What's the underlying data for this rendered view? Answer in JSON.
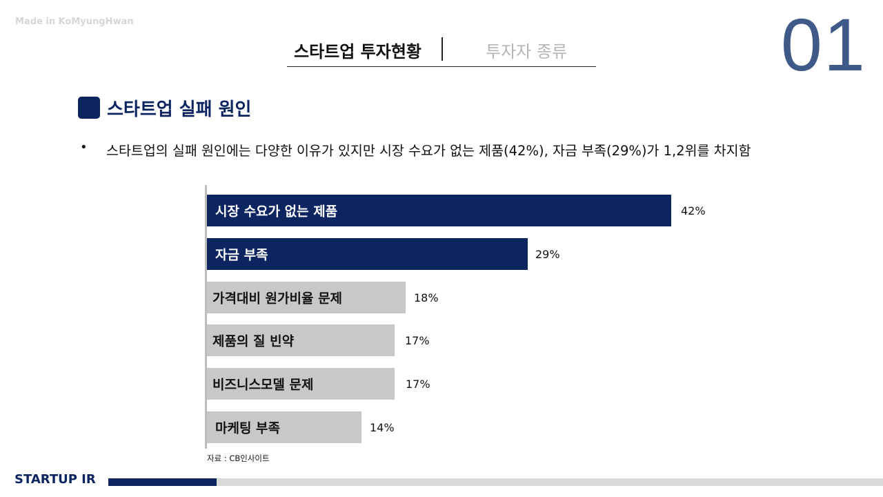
{
  "watermark": "Made in KoMyungHwan",
  "tabs": [
    {
      "label": "스타트업 투자현황",
      "active": true
    },
    {
      "label": "투자자 종류",
      "active": false
    }
  ],
  "page_number": "01",
  "section": {
    "title": "스타트업 실패 원인"
  },
  "bullet": {
    "marker": "•",
    "text": "스타트업의 실패 원인에는 다양한 이유가 있지만 시장 수요가 없는 제품(42%), 자금 부족(29%)가 1,2위를 차지함"
  },
  "chart_data": {
    "type": "bar",
    "orientation": "horizontal",
    "categories": [
      "시장 수요가 없는 제품",
      "자금 부족",
      "가격대비 원가비율 문제",
      "제품의 질 빈약",
      "비즈니스모델 문제",
      "마케팅 부족"
    ],
    "values": [
      42,
      29,
      18,
      17,
      17,
      14
    ],
    "value_labels": [
      "42%",
      "29%",
      "18%",
      "17%",
      "17%",
      "14%"
    ],
    "unit": "%",
    "xlim": [
      0,
      42
    ],
    "highlight_colors": [
      "#0c2460",
      "#0c2460",
      "#c8c8c8",
      "#c8c8c8",
      "#c8c8c8",
      "#c8c8c8"
    ],
    "label_colors": [
      "#ffffff",
      "#ffffff",
      "#111111",
      "#111111",
      "#111111",
      "#111111"
    ]
  },
  "source_note": "자료 : CB인사이트",
  "footer": {
    "label": "STARTUP IR",
    "progress": 0.14
  },
  "colors": {
    "accent": "#0c2460",
    "page_number": "#3f5989",
    "muted_bar": "#c8c8c8"
  }
}
